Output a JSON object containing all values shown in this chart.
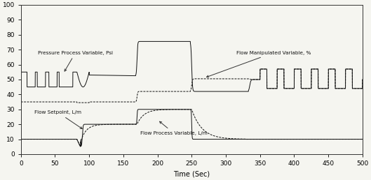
{
  "xlim": [
    0,
    500
  ],
  "ylim": [
    0,
    100
  ],
  "yticks": [
    0,
    10,
    20,
    30,
    40,
    50,
    60,
    70,
    80,
    90,
    100
  ],
  "xticks": [
    0,
    50,
    100,
    150,
    200,
    250,
    300,
    350,
    400,
    450,
    500
  ],
  "xlabel": "Time (Sec)",
  "line_color": "#111111",
  "bg_color": "#f5f5f0"
}
